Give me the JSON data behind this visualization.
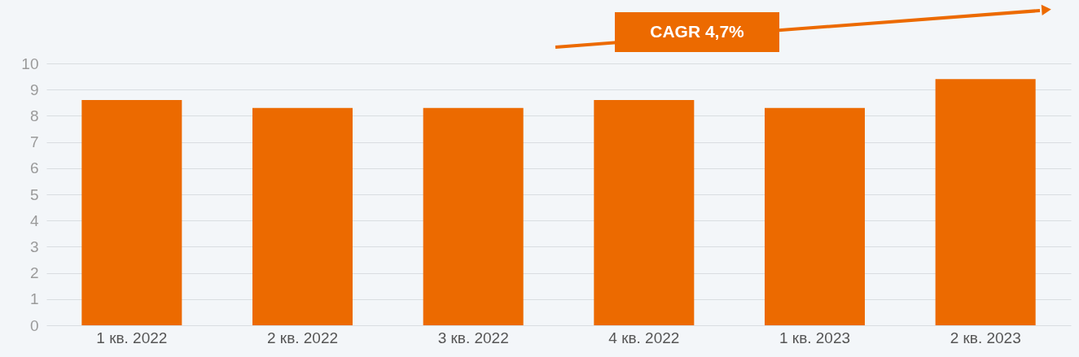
{
  "chart_data": {
    "type": "bar",
    "categories": [
      "1 кв. 2022",
      "2 кв. 2022",
      "3 кв. 2022",
      "4 кв. 2022",
      "1 кв. 2023",
      "2 кв. 2023"
    ],
    "values": [
      8.6,
      8.3,
      8.3,
      8.6,
      8.3,
      9.4
    ],
    "color": "#ec6a00",
    "ylim": [
      0,
      10
    ],
    "yticks": [
      0,
      1,
      2,
      3,
      4,
      5,
      6,
      7,
      8,
      9,
      10
    ],
    "grid": "y",
    "annotations": [
      "CAGR 4,7%"
    ]
  }
}
